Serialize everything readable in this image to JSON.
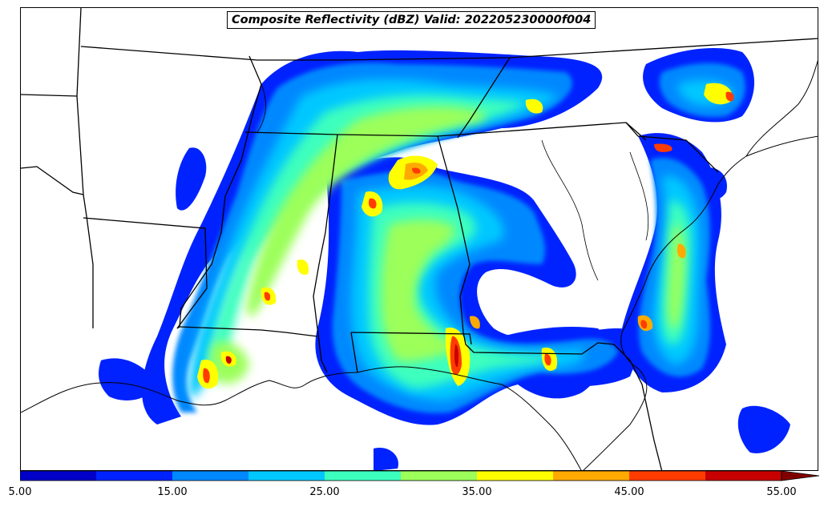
{
  "title": "Composite Reflectivity (dBZ) Valid: 202205230000f004",
  "colorbar": {
    "colors": [
      "#0000c8",
      "#0022ff",
      "#0088ff",
      "#00c8ff",
      "#3cffbe",
      "#9cff5a",
      "#ffff00",
      "#ffaa00",
      "#ff3c00",
      "#c80000",
      "#800000"
    ],
    "tick_labels": [
      "5.00",
      "15.00",
      "25.00",
      "35.00",
      "45.00",
      "55.00"
    ],
    "range": [
      5,
      60
    ],
    "interval": 5,
    "extend": "max"
  },
  "map": {
    "projection": "Lambert Conformal",
    "region": "Southeastern United States",
    "boundaries": [
      "coastlines",
      "state borders"
    ]
  }
}
